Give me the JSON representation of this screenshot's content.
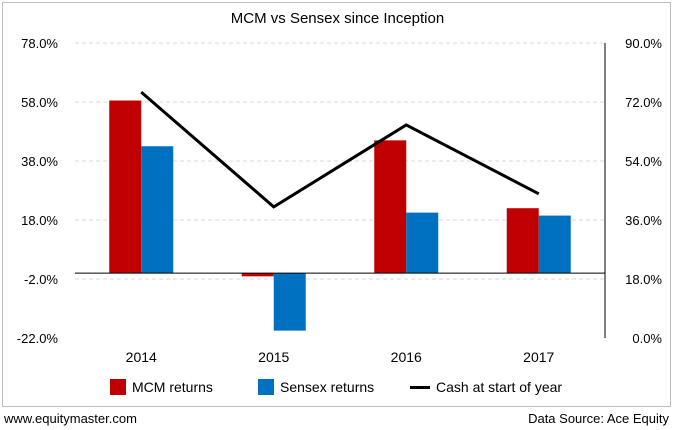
{
  "chart_data": {
    "type": "bar",
    "title": "MCM vs Sensex since Inception",
    "categories": [
      "2014",
      "2015",
      "2016",
      "2017"
    ],
    "series": [
      {
        "name": "MCM returns",
        "values": [
          58.5,
          -1.1,
          45.0,
          22.0
        ],
        "color": "#c00000",
        "axis": "left"
      },
      {
        "name": "Sensex returns",
        "values": [
          43.0,
          -19.5,
          20.5,
          19.5
        ],
        "color": "#0070c0",
        "axis": "left"
      }
    ],
    "line_series": [
      {
        "name": "Cash at start of year",
        "values": [
          75.0,
          40.0,
          65.0,
          44.0
        ],
        "color": "#000000",
        "axis": "right"
      }
    ],
    "left_axis": {
      "ylim": [
        -22.0,
        78.0
      ],
      "ticks": [
        "78.0%",
        "58.0%",
        "38.0%",
        "18.0%",
        "-2.0%",
        "-22.0%"
      ]
    },
    "right_axis": {
      "ylim": [
        0.0,
        90.0
      ],
      "ticks": [
        "90.0%",
        "72.0%",
        "54.0%",
        "36.0%",
        "18.0%",
        "0.0%"
      ]
    },
    "grid": "horizontal",
    "legend_position": "bottom"
  },
  "footer": {
    "website": "www.equitymaster.com",
    "source": "Data Source: Ace Equity"
  }
}
